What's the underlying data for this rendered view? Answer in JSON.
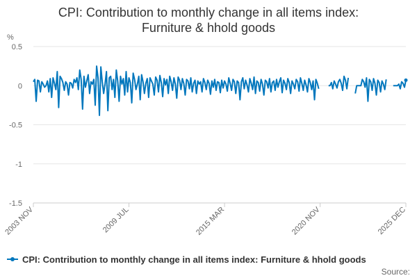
{
  "chart_data": {
    "type": "line",
    "title": "CPI: Contribution to monthly change in all items index:",
    "title_line2": "Furniture & hhold goods",
    "ylabel": "%",
    "ylim": [
      -1.5,
      0.5
    ],
    "yticks": [
      0.5,
      0,
      -0.5,
      -1,
      -1.5
    ],
    "ytick_labels": [
      "0.5",
      "0",
      "-0.5",
      "-1",
      "-1.5"
    ],
    "x_start": "2003 NOV",
    "x_end": "2025 DEC",
    "xtick_labels": [
      "2003 NOV",
      "2009 JUL",
      "2015 MAR",
      "2020 NOV",
      "2025 DEC"
    ],
    "xtick_month_index": [
      0,
      68,
      136,
      204,
      265
    ],
    "series": [
      {
        "name": "CPI: Contribution to monthly change in all items index: Furniture & hhold goods",
        "color": "#0277bd",
        "gaps": [
          [
            204,
            210
          ],
          [
            225,
            229
          ],
          [
            252,
            256
          ]
        ],
        "values": [
          0.05,
          0.08,
          -0.2,
          0.07,
          0.06,
          -0.08,
          0.05,
          0.02,
          -0.02,
          0.0,
          0.06,
          -0.08,
          0.09,
          -0.15,
          0.1,
          0.03,
          -0.05,
          0.18,
          -0.28,
          0.12,
          0.09,
          0.04,
          -0.06,
          0.05,
          0.02,
          -0.12,
          0.04,
          0.03,
          -0.03,
          0.08,
          0.04,
          0.1,
          -0.05,
          0.2,
          0.08,
          -0.3,
          0.12,
          -0.02,
          0.06,
          0.14,
          -0.1,
          0.05,
          0.02,
          0.08,
          -0.25,
          0.25,
          0.1,
          -0.38,
          0.24,
          0.05,
          -0.1,
          0.02,
          0.18,
          -0.32,
          0.1,
          0.12,
          -0.05,
          0.08,
          -0.15,
          0.2,
          0.06,
          -0.2,
          0.12,
          0.02,
          0.09,
          -0.12,
          0.18,
          -0.08,
          0.1,
          0.04,
          -0.22,
          0.16,
          0.08,
          -0.05,
          0.02,
          0.12,
          -0.18,
          0.14,
          0.05,
          -0.1,
          0.03,
          0.09,
          -0.15,
          0.1,
          0.06,
          0.02,
          -0.12,
          0.11,
          0.07,
          -0.08,
          0.13,
          0.04,
          -0.14,
          0.09,
          0.01,
          0.08,
          -0.1,
          0.12,
          0.05,
          -0.06,
          0.1,
          0.02,
          -0.16,
          0.11,
          0.07,
          -0.05,
          0.09,
          0.03,
          -0.12,
          0.08,
          0.06,
          -0.04,
          0.1,
          -0.08,
          0.03,
          0.07,
          -0.1,
          0.06,
          0.02,
          0.05,
          -0.08,
          0.09,
          0.04,
          -0.05,
          0.07,
          0.03,
          -0.11,
          0.06,
          -0.02,
          0.08,
          -0.06,
          0.05,
          0.04,
          -0.09,
          0.07,
          -0.03,
          0.06,
          0.02,
          -0.07,
          0.1,
          0.03,
          -0.06,
          0.08,
          0.05,
          -0.1,
          0.06,
          0.04,
          -0.18,
          0.05,
          0.1,
          -0.04,
          0.07,
          0.01,
          -0.08,
          0.09,
          0.03,
          -0.05,
          0.11,
          -0.1,
          0.06,
          0.04,
          -0.07,
          0.08,
          0.02,
          -0.12,
          0.07,
          0.05,
          -0.03,
          0.09,
          -0.08,
          0.04,
          0.06,
          -0.06,
          0.08,
          -0.02,
          0.05,
          0.1,
          -0.09,
          0.07,
          0.03,
          -0.05,
          0.09,
          0.04,
          -0.1,
          0.06,
          0.02,
          -0.04,
          0.08,
          0.05,
          -0.07,
          0.1,
          0.03,
          -0.06,
          0.07,
          0.01,
          -0.08,
          0.09,
          0.04,
          -0.05,
          0.06,
          -0.18,
          0.08,
          0.03,
          -0.04,
          0.07,
          0.02,
          0.0,
          0.0,
          0.0,
          0.0,
          0.0,
          0.0,
          0.04,
          -0.04,
          0.06,
          0.02,
          -0.03,
          0.05,
          0.08,
          0.03,
          -0.06,
          0.12,
          0.07,
          -0.04,
          0.1,
          0.18,
          -0.08,
          0.15,
          0.06,
          -0.1,
          0.0,
          0.0,
          0.0,
          0.0,
          0.08,
          0.05,
          -0.02,
          0.1,
          -0.2,
          0.08,
          0.05,
          -0.06,
          0.09,
          0.03,
          -0.12,
          0.07,
          0.04,
          -0.08,
          0.06,
          0.02,
          -0.05,
          0.08,
          0.03,
          -0.1,
          0.06,
          0.01,
          0.0,
          0.0,
          0.0,
          0.0,
          0.02,
          -0.04,
          0.05,
          0.03,
          -0.02,
          0.07
        ]
      }
    ],
    "legend_position": "bottom",
    "source_label": "Source:"
  }
}
